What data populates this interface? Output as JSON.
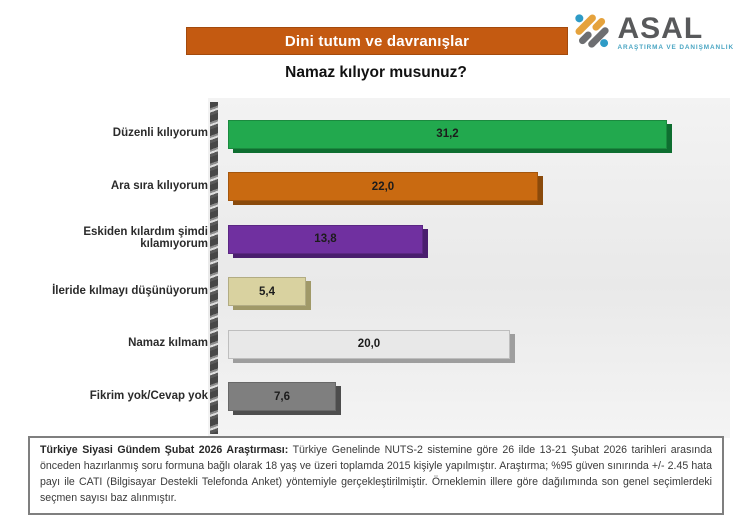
{
  "header": {
    "banner": "Dini tutum ve davranışlar",
    "question": "Namaz kılıyor musunuz?"
  },
  "logo": {
    "name": "ASAL",
    "tagline": "ARAŞTIRMA VE DANIŞMANLIK"
  },
  "chart_data": {
    "type": "bar",
    "orientation": "horizontal",
    "title": "Namaz kılıyor musunuz?",
    "categories": [
      "Düzenli kılıyorum",
      "Ara sıra kılıyorum",
      "Eskiden kılardım şimdi kılamıyorum",
      "İleride kılmayı düşünüyorum",
      "Namaz kılmam",
      "Fikrim yok/Cevap yok"
    ],
    "values": [
      31.2,
      22.0,
      13.8,
      5.4,
      20.0,
      7.6
    ],
    "value_labels": [
      "31,2",
      "22,0",
      "13,8",
      "5,4",
      "20,0",
      "7,6"
    ],
    "bar_colors": [
      "#22a94e",
      "#c96a11",
      "#7030a0",
      "#d9d2a0",
      "#e8e8e8",
      "#7f7f7f"
    ],
    "bar_edge_colors": [
      "#0e6e30",
      "#8a4a0b",
      "#4a1e6e",
      "#a09968",
      "#9e9e9e",
      "#4d4d4d"
    ],
    "xlabel": "",
    "ylabel": "",
    "xlim": [
      0,
      32.5
    ],
    "grid": false,
    "legend": false,
    "value_label_position": "center-inside"
  },
  "footer": {
    "lead": "Türkiye Siyasi Gündem Şubat 2026 Araştırması:",
    "body": " Türkiye Genelinde NUTS-2 sistemine göre 26 ilde 13-21 Şubat 2026 tarihleri arasında önceden hazırlanmış soru formuna bağlı olarak 18 yaş ve üzeri toplamda 2015 kişiyle yapılmıştır. Araştırma; %95 güven sınırında +/- 2.45 hata payı ile CATI (Bilgisayar Destekli Telefonda Anket) yöntemiyle gerçekleştirilmiştir. Örneklemin illere göre dağılımında son genel seçimlerdeki seçmen sayısı baz alınmıştır."
  },
  "colors": {
    "banner_bg": "#c45a11",
    "banner_text": "#ffffff",
    "logo_name": "#58595b",
    "logo_tagline": "#4ba6c3",
    "logo_dot": "#2e9bc6",
    "logo_pill_orange": "#e5a23c",
    "logo_pill_gray": "#6d6e71",
    "footnote_border": "#7f7f7f"
  }
}
